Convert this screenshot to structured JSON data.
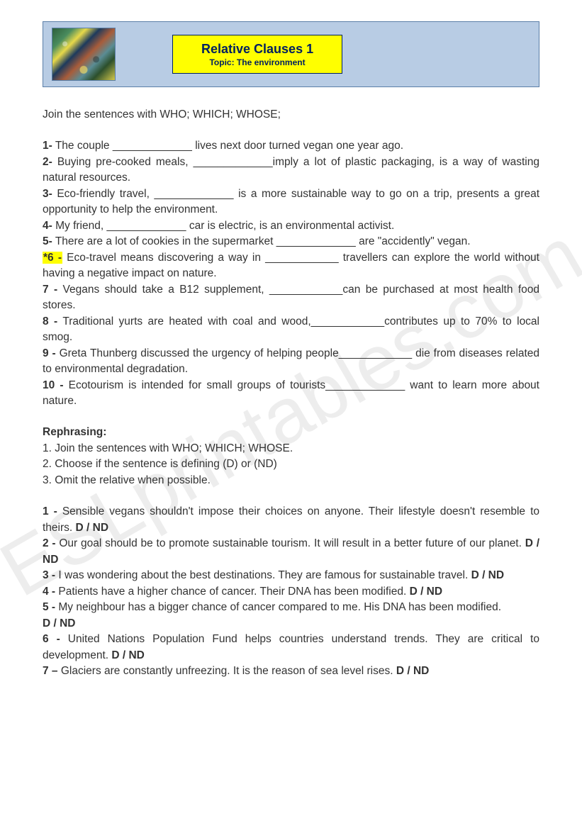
{
  "watermark": "ESLprintables.com",
  "header": {
    "title": "Relative Clauses 1",
    "subtitle": "Topic: The environment"
  },
  "exercise1": {
    "instruction": "Join the sentences with WHO; WHICH; WHOSE;",
    "items": [
      {
        "n": "1-",
        "text": " The couple _____________ lives next door turned vegan one year ago."
      },
      {
        "n": "2-",
        "text": " Buying pre-cooked meals, _____________imply a lot of plastic packaging, is a way of wasting natural resources."
      },
      {
        "n": "3-",
        "text": " Eco-friendly travel, _____________ is a more sustainable way to go on a trip, presents a great opportunity to help the environment."
      },
      {
        "n": "4-",
        "text": " My friend, _____________ car is electric, is an environmental activist."
      },
      {
        "n": "5-",
        "text": " There are a lot of cookies in the supermarket _____________ are \"accidently\" vegan."
      },
      {
        "n": "*6 -",
        "star": true,
        "text": " Eco-travel means discovering a way in ____________ travellers can explore the world without having a negative impact on nature."
      },
      {
        "n": "7 -",
        "text": " Vegans should take a B12 supplement, ____________can be purchased at most health food stores."
      },
      {
        "n": "8 -",
        "text": " Traditional yurts are heated with coal and wood,____________contributes up to 70% to local smog."
      },
      {
        "n": "9 -",
        "text": " Greta Thunberg discussed the urgency of helping people____________ die from diseases related to environmental degradation."
      },
      {
        "n": "10 -",
        "text": " Ecotourism is intended for small groups of tourists_____________ want to learn more about nature."
      }
    ]
  },
  "rephrasing": {
    "heading": "Rephrasing:",
    "instructions": [
      "1. Join the sentences with WHO; WHICH; WHOSE.",
      "2. Choose if the sentence is defining (D) or (ND)",
      "3. Omit the relative when possible."
    ],
    "items": [
      {
        "n": "1 -",
        "text": " Sensible vegans shouldn't impose their choices on anyone. Their lifestyle doesn't resemble to theirs. ",
        "dnd": "D / ND"
      },
      {
        "n": "2 -",
        "text": " Our goal should be to promote sustainable tourism. It will result in a better future of our planet. ",
        "dnd": "D / ND"
      },
      {
        "n": "3 -",
        "text": " I was wondering about the best destinations. They are famous for sustainable travel. ",
        "dnd": "D / ND"
      },
      {
        "n": "4 -",
        "text": " Patients have a higher chance of cancer. Their DNA has been modified. ",
        "dnd": "D / ND",
        "break": true
      },
      {
        "n": "5 -",
        "text": " My neighbour has a bigger chance of cancer compared to me. His DNA has been modified.",
        "dnd": "D / ND",
        "newline": true
      },
      {
        "n": "6 -",
        "text": " United Nations Population Fund helps countries understand trends. They are critical to development. ",
        "dnd": "D / ND"
      },
      {
        "n": "7 –",
        "text": " Glaciers are constantly unfreezing. It is the reason of sea level rises. ",
        "dnd": "D / ND"
      }
    ]
  },
  "colors": {
    "header_bg": "#b8cce4",
    "header_border": "#5b7fa8",
    "title_bg": "#ffff00",
    "title_border": "#002060",
    "title_text": "#002060",
    "body_text": "#333333",
    "highlight": "#ffff00"
  }
}
